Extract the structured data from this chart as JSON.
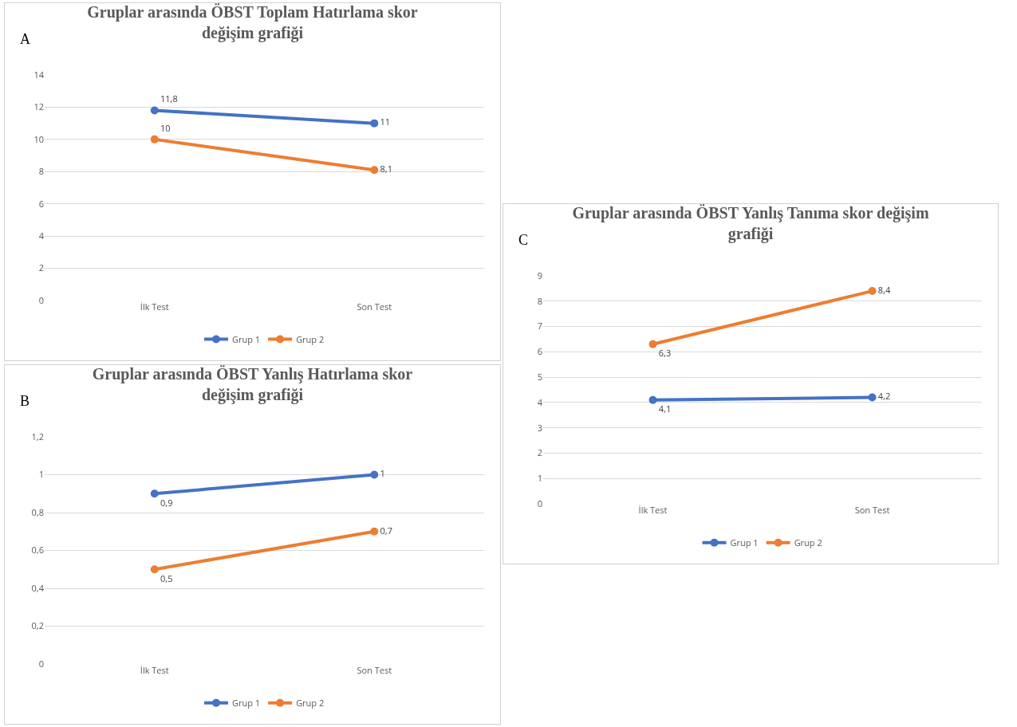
{
  "chart_data": [
    {
      "type": "line",
      "title": "Gruplar arasında ÖBST Toplam Hatırlama skor değişim grafiği",
      "annotations": [
        "A"
      ],
      "categories": [
        "İlk Test",
        "Son Test"
      ],
      "series": [
        {
          "name": "Grup 1",
          "color": "#4472c4",
          "values": [
            11.8,
            11
          ],
          "value_labels": [
            "11,8",
            "11"
          ]
        },
        {
          "name": "Grup 2",
          "color": "#ed7d31",
          "values": [
            10,
            8.1
          ],
          "value_labels": [
            "10",
            "8,1"
          ]
        }
      ],
      "ylim": [
        0,
        14
      ],
      "yticks": [
        0,
        2,
        4,
        6,
        8,
        10,
        12,
        14
      ],
      "grid": "y",
      "legend": "bottom",
      "marker": "circle",
      "line_style": "solid"
    },
    {
      "type": "line",
      "title": "Gruplar arasında ÖBST Yanlış Hatırlama skor değişim grafiği",
      "annotations": [
        "B"
      ],
      "categories": [
        "İlk Test",
        "Son Test"
      ],
      "series": [
        {
          "name": "Grup 1",
          "color": "#4472c4",
          "values": [
            0.9,
            1
          ],
          "value_labels": [
            "0,9",
            "1"
          ]
        },
        {
          "name": "Grup 2",
          "color": "#ed7d31",
          "values": [
            0.5,
            0.7
          ],
          "value_labels": [
            "0,5",
            "0,7"
          ]
        }
      ],
      "ylim": [
        0,
        1.2
      ],
      "yticks": [
        0,
        {
          "value": 0.2,
          "label": "0,2"
        },
        {
          "value": 0.4,
          "label": "0,4"
        },
        {
          "value": 0.6,
          "label": "0,6"
        },
        {
          "value": 0.8,
          "label": "0,8"
        },
        1,
        {
          "value": 1.2,
          "label": "1,2"
        }
      ],
      "grid": "y",
      "legend": "bottom",
      "marker": "circle",
      "line_style": "solid"
    },
    {
      "type": "line",
      "title": "Gruplar arasında ÖBST Yanlış Tanıma skor değişim grafiği",
      "annotations": [
        "C"
      ],
      "categories": [
        "İlk Test",
        "Son Test"
      ],
      "series": [
        {
          "name": "Grup 1",
          "color": "#4472c4",
          "values": [
            4.1,
            4.2
          ],
          "value_labels": [
            "4,1",
            "4,2"
          ]
        },
        {
          "name": "Grup 2",
          "color": "#ed7d31",
          "values": [
            6.3,
            8.4
          ],
          "value_labels": [
            "6,3",
            "8,4"
          ]
        }
      ],
      "ylim": [
        0,
        9
      ],
      "yticks": [
        0,
        1,
        2,
        3,
        4,
        5,
        6,
        7,
        8,
        9
      ],
      "grid": "y",
      "legend": "bottom",
      "marker": "circle",
      "line_style": "solid"
    }
  ]
}
